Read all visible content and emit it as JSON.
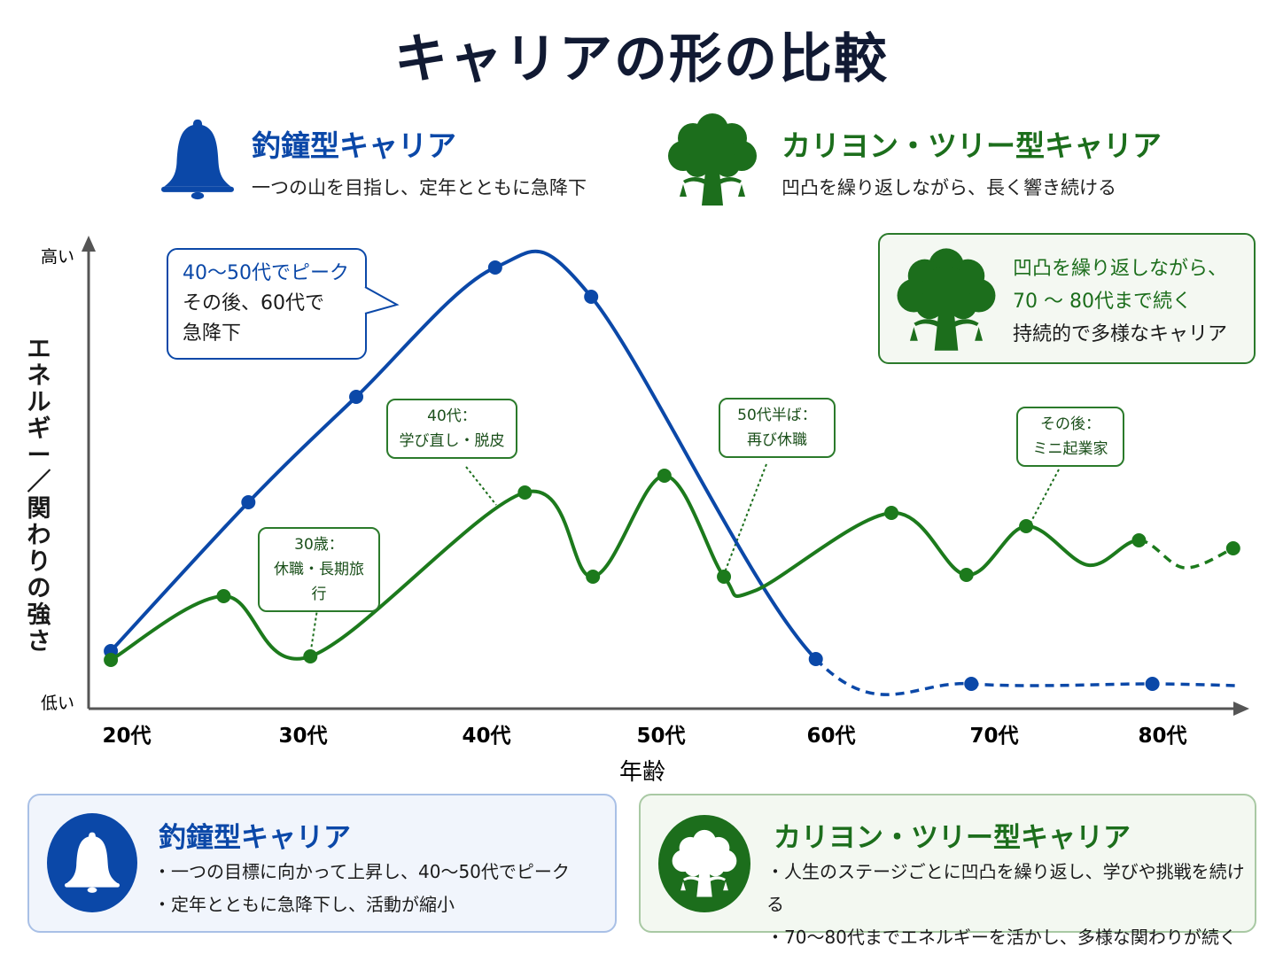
{
  "title": "キャリアの形の比較",
  "colors": {
    "bell": "#0b48a8",
    "carillon": "#1c7a1c",
    "title": "#111a33"
  },
  "header": {
    "bell": {
      "icon": "bell-icon",
      "title": "釣鐘型キャリア",
      "subtitle": "一つの山を目指し、定年とともに急降下"
    },
    "carillon": {
      "icon": "carillon-tree-icon",
      "title": "カリヨン・ツリー型キャリア",
      "subtitle": "凹凸を繰り返しながら、長く響き続ける"
    }
  },
  "chart_data": {
    "type": "line",
    "xlabel": "年齢",
    "ylabel": "エネルギー／関わりの強さ",
    "y_high_label": "高い",
    "y_low_label": "低い",
    "x_ticks": [
      {
        "age": 20,
        "label": "20代"
      },
      {
        "age": 30,
        "label": "30代"
      },
      {
        "age": 40,
        "label": "40代"
      },
      {
        "age": 50,
        "label": "50代"
      },
      {
        "age": 60,
        "label": "60代"
      },
      {
        "age": 70,
        "label": "70代"
      },
      {
        "age": 80,
        "label": "80代"
      }
    ],
    "ylim": [
      0,
      100
    ],
    "grid": false,
    "series": [
      {
        "key": "bell",
        "points": [
          [
            19.1,
            13,
            1
          ],
          [
            26.9,
            46.6,
            1
          ],
          [
            32.9,
            70.4,
            1
          ],
          [
            40.5,
            99.6,
            1
          ],
          [
            46,
            93,
            1
          ],
          [
            59.1,
            11.2,
            1
          ],
          [
            68.6,
            5.6,
            1
          ],
          [
            79.4,
            5.6,
            1
          ],
          [
            84.4,
            5.2,
            0
          ]
        ],
        "dashed_from_age": 59.1
      },
      {
        "key": "carillon",
        "points": [
          [
            19.1,
            11,
            1
          ],
          [
            25.5,
            25.4,
            1
          ],
          [
            30.4,
            11.8,
            1
          ],
          [
            42.2,
            48.8,
            1
          ],
          [
            46.1,
            29.8,
            1
          ],
          [
            50.2,
            52.6,
            1
          ],
          [
            53.7,
            29.8,
            1
          ],
          [
            55.5,
            26.6,
            0
          ],
          [
            63.7,
            44.2,
            1
          ],
          [
            68.3,
            30.2,
            1
          ],
          [
            71.9,
            41.2,
            1
          ],
          [
            75.6,
            32.4,
            0
          ],
          [
            78.6,
            38,
            1
          ],
          [
            81.3,
            31.8,
            0
          ],
          [
            84.2,
            36.2,
            1
          ]
        ],
        "dashed_from_age": 78.6
      }
    ],
    "annotations": {
      "bell_peak": [
        "40〜50代でピーク",
        "その後、60代で",
        "急降下"
      ],
      "a30": [
        "30歳：",
        "休職・長期旅行"
      ],
      "a40": [
        "40代：",
        "学び直し・脱皮"
      ],
      "a50": [
        "50代半ば：",
        "再び休職"
      ],
      "a_after": [
        "その後：",
        "ミニ起業家"
      ],
      "legend": [
        "凹凸を繰り返しながら、",
        "70 〜 80代まで続く",
        "持続的で多様なキャリア"
      ]
    }
  },
  "cards": {
    "bell": {
      "title": "釣鐘型キャリア",
      "bullets": [
        "・一つの目標に向かって上昇し、40〜50代でピーク",
        "・定年とともに急降下し、活動が縮小"
      ]
    },
    "carillon": {
      "title": "カリヨン・ツリー型キャリア",
      "bullets": [
        "・人生のステージごとに凹凸を繰り返し、学びや挑戦を続ける",
        "・70〜80代までエネルギーを活かし、多様な関わりが続く"
      ]
    }
  }
}
